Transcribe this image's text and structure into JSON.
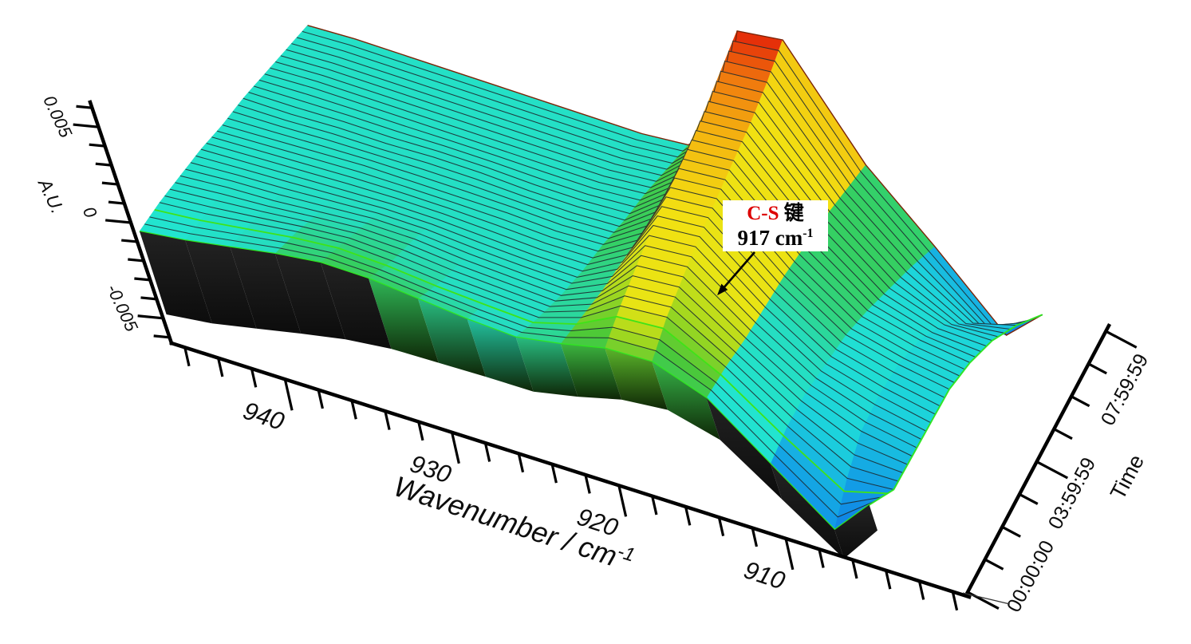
{
  "chart_data": {
    "type": "surface",
    "title": "",
    "x_axis": {
      "title": "Wavenumber / cm",
      "title_sup": "-1",
      "major_ticks": [
        940,
        930,
        920,
        910
      ],
      "minor_step": 2,
      "axis_start_wavenumber": 946.8,
      "axis_end_wavenumber": 900.0
    },
    "time_axis": {
      "title": "Time",
      "major_tick_labels": [
        "00:00:00",
        "03:59:59",
        "07:59:59"
      ],
      "major_tick_hours": [
        0,
        4,
        8
      ],
      "minor_step_hours": 1,
      "range_hours": [
        0,
        8
      ]
    },
    "z_axis": {
      "title": "A.U.",
      "major_tick_labels": [
        "0.005",
        "0",
        "-0.005"
      ],
      "major_tick_values": [
        0.005,
        0,
        -0.005
      ],
      "minor_step": 0.001,
      "display_range": [
        -0.006,
        0.006
      ]
    },
    "wavenumbers": [
      948,
      945,
      942,
      939,
      936,
      933,
      930,
      927,
      924,
      921,
      918,
      915,
      912,
      909,
      906,
      903
    ],
    "time_keyframes_hours": [
      0,
      1,
      2,
      3,
      4,
      5,
      6,
      7,
      8
    ],
    "spectra": [
      [
        0.0,
        0.0003,
        0.0007,
        0.0011,
        0.0014,
        0.0014,
        0.0012,
        0.001,
        0.0009,
        0.0013,
        0.0018,
        0.0019,
        0.001,
        -0.0012,
        -0.0034,
        -0.0016
      ],
      [
        0.0002,
        0.0004,
        0.0007,
        0.001,
        0.0012,
        0.0011,
        0.0009,
        0.0008,
        0.0007,
        0.0014,
        0.0026,
        0.0028,
        0.0013,
        -0.0006,
        -0.0022,
        -0.002
      ],
      [
        0.0003,
        0.0005,
        0.0006,
        0.0008,
        0.001,
        0.001,
        0.0008,
        0.0007,
        0.0006,
        0.0015,
        0.0033,
        0.0035,
        0.0015,
        -0.0002,
        -0.0012,
        -0.0016
      ],
      [
        0.0004,
        0.0005,
        0.0006,
        0.0007,
        0.0008,
        0.0008,
        0.0007,
        0.0006,
        0.0006,
        0.0017,
        0.004,
        0.0042,
        0.0018,
        0.0,
        -0.0007,
        -0.0012
      ],
      [
        0.0004,
        0.0005,
        0.0006,
        0.0007,
        0.0007,
        0.0007,
        0.0007,
        0.0006,
        0.0007,
        0.0019,
        0.0046,
        0.0048,
        0.0021,
        0.0002,
        -0.0004,
        -0.0008
      ],
      [
        0.0005,
        0.0005,
        0.0006,
        0.0006,
        0.0007,
        0.0007,
        0.0006,
        0.0006,
        0.0007,
        0.0021,
        0.0052,
        0.0054,
        0.0023,
        0.0002,
        -0.0004,
        -0.0007
      ],
      [
        0.0005,
        0.0006,
        0.0006,
        0.0006,
        0.0006,
        0.0006,
        0.0006,
        0.0006,
        0.0008,
        0.0022,
        0.0058,
        0.006,
        0.0025,
        0.0001,
        -0.0008,
        -0.0008
      ],
      [
        0.0005,
        0.0006,
        0.0006,
        0.0006,
        0.0006,
        0.0006,
        0.0006,
        0.0006,
        0.0008,
        0.0024,
        0.0065,
        0.0067,
        0.0026,
        0.0,
        -0.0018,
        -0.0012
      ],
      [
        0.0005,
        0.0006,
        0.0006,
        0.0006,
        0.0006,
        0.0006,
        0.0006,
        0.0006,
        0.0008,
        0.0025,
        0.0072,
        0.0075,
        0.0027,
        -0.0002,
        -0.0034,
        -0.0018
      ]
    ],
    "display_slices": 33,
    "colormap": [
      [
        -0.005,
        "#0a16b4"
      ],
      [
        -0.0034,
        "#0a40e0"
      ],
      [
        -0.0022,
        "#129ae6"
      ],
      [
        -0.001,
        "#1cd2dc"
      ],
      [
        0.0002,
        "#22e4cf"
      ],
      [
        0.0009,
        "#25ddc0"
      ],
      [
        0.0013,
        "#35cf62"
      ],
      [
        0.0017,
        "#4bc838"
      ],
      [
        0.0022,
        "#a4d81e"
      ],
      [
        0.0028,
        "#e8e414"
      ],
      [
        0.0044,
        "#f2e012"
      ],
      [
        0.0056,
        "#f4b510"
      ],
      [
        0.0065,
        "#f07d0e"
      ],
      [
        0.0071,
        "#e8400a"
      ],
      [
        0.0075,
        "#e01608"
      ]
    ],
    "annotation": {
      "bond": "C-S",
      "bond_suffix": " 键",
      "line2": "917 cm",
      "line2_sup": "-1",
      "arrow_points_to_wavenumber": 917
    }
  },
  "colors": {
    "background": "#ffffff",
    "axis": "#000000",
    "waterfall_line": "#1d2a30",
    "front_rim": "#2ee61e",
    "highlight_contour": "#3fe318",
    "back_edge": "#7a2408",
    "skirt_dark": "#181818",
    "annotation_red": "#dd0000"
  }
}
